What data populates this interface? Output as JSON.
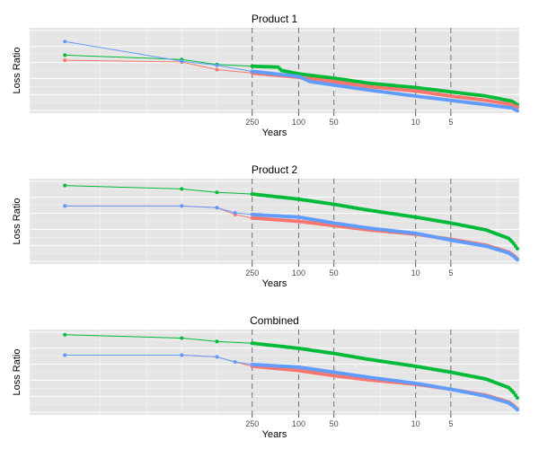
{
  "colors": {
    "panel_bg": "#e5e5e5",
    "grid_major": "#ffffff",
    "grid_minor": "#f2f2f2",
    "vline": "#707070",
    "series": [
      "#f8766d",
      "#00ba38",
      "#619cff"
    ]
  },
  "chart_data": [
    {
      "type": "line",
      "title": "Product 1",
      "xlabel": "Years",
      "ylabel": "Loss Ratio",
      "x_scale": "log10-reversed",
      "xlim": [
        20000,
        1.3
      ],
      "ylim": [
        0,
        1
      ],
      "grid": true,
      "legend": "none",
      "vlines": [
        250,
        100,
        50,
        10,
        5
      ],
      "x_ticks": [
        "250",
        "100",
        "50",
        "10",
        "5"
      ],
      "series": [
        {
          "values": [
            [
              10000,
              0.62
            ],
            [
              1000,
              0.6
            ],
            [
              500,
              0.51
            ],
            [
              250,
              0.47
            ],
            [
              100,
              0.42
            ],
            [
              50,
              0.37
            ],
            [
              25,
              0.31
            ],
            [
              10,
              0.26
            ],
            [
              5,
              0.2
            ],
            [
              2.5,
              0.15
            ],
            [
              1.5,
              0.1
            ],
            [
              1.35,
              0.07
            ]
          ]
        },
        {
          "values": [
            [
              10000,
              0.68
            ],
            [
              1000,
              0.63
            ],
            [
              500,
              0.57
            ],
            [
              250,
              0.55
            ],
            [
              150,
              0.54
            ],
            [
              140,
              0.5
            ],
            [
              100,
              0.46
            ],
            [
              50,
              0.41
            ],
            [
              25,
              0.35
            ],
            [
              10,
              0.3
            ],
            [
              5,
              0.25
            ],
            [
              2.5,
              0.2
            ],
            [
              1.5,
              0.14
            ],
            [
              1.35,
              0.1
            ]
          ]
        },
        {
          "values": [
            [
              10000,
              0.84
            ],
            [
              1000,
              0.61
            ],
            [
              500,
              0.56
            ],
            [
              250,
              0.49
            ],
            [
              100,
              0.43
            ],
            [
              80,
              0.37
            ],
            [
              50,
              0.33
            ],
            [
              25,
              0.27
            ],
            [
              10,
              0.2
            ],
            [
              5,
              0.15
            ],
            [
              2.5,
              0.1
            ],
            [
              1.5,
              0.06
            ],
            [
              1.35,
              0.03
            ]
          ]
        }
      ]
    },
    {
      "type": "line",
      "title": "Product 2",
      "xlabel": "Years",
      "ylabel": "Loss Ratio",
      "x_scale": "log10-reversed",
      "xlim": [
        20000,
        1.3
      ],
      "ylim": [
        0,
        1
      ],
      "grid": true,
      "legend": "none",
      "vlines": [
        250,
        100,
        50,
        10,
        5
      ],
      "x_ticks": [
        "250",
        "100",
        "50",
        "10",
        "5"
      ],
      "series": [
        {
          "values": [
            [
              10000,
              0.68
            ],
            [
              1000,
              0.68
            ],
            [
              500,
              0.66
            ],
            [
              350,
              0.58
            ],
            [
              250,
              0.54
            ],
            [
              100,
              0.5
            ],
            [
              50,
              0.45
            ],
            [
              25,
              0.4
            ],
            [
              10,
              0.35
            ],
            [
              5,
              0.29
            ],
            [
              2.5,
              0.22
            ],
            [
              1.6,
              0.14
            ],
            [
              1.45,
              0.1
            ],
            [
              1.35,
              0.06
            ]
          ]
        },
        {
          "values": [
            [
              10000,
              0.92
            ],
            [
              1000,
              0.88
            ],
            [
              500,
              0.84
            ],
            [
              250,
              0.82
            ],
            [
              100,
              0.76
            ],
            [
              50,
              0.7
            ],
            [
              25,
              0.63
            ],
            [
              10,
              0.55
            ],
            [
              5,
              0.48
            ],
            [
              2.5,
              0.4
            ],
            [
              1.6,
              0.3
            ],
            [
              1.45,
              0.24
            ],
            [
              1.35,
              0.18
            ]
          ]
        },
        {
          "values": [
            [
              10000,
              0.68
            ],
            [
              1000,
              0.68
            ],
            [
              500,
              0.66
            ],
            [
              350,
              0.6
            ],
            [
              250,
              0.58
            ],
            [
              100,
              0.55
            ],
            [
              50,
              0.48
            ],
            [
              25,
              0.42
            ],
            [
              10,
              0.36
            ],
            [
              5,
              0.28
            ],
            [
              2.5,
              0.21
            ],
            [
              1.6,
              0.13
            ],
            [
              1.45,
              0.09
            ],
            [
              1.35,
              0.05
            ]
          ]
        }
      ]
    },
    {
      "type": "line",
      "title": "Combined",
      "xlabel": "Years",
      "ylabel": "Loss Ratio",
      "x_scale": "log10-reversed",
      "xlim": [
        20000,
        1.3
      ],
      "ylim": [
        0,
        1
      ],
      "grid": true,
      "legend": "none",
      "vlines": [
        250,
        100,
        50,
        10,
        5
      ],
      "x_ticks": [
        "250",
        "100",
        "50",
        "10",
        "5"
      ],
      "series": [
        {
          "values": [
            [
              10000,
              0.7
            ],
            [
              1000,
              0.7
            ],
            [
              500,
              0.68
            ],
            [
              350,
              0.62
            ],
            [
              250,
              0.57
            ],
            [
              100,
              0.52
            ],
            [
              50,
              0.46
            ],
            [
              25,
              0.41
            ],
            [
              10,
              0.36
            ],
            [
              5,
              0.3
            ],
            [
              2.5,
              0.23
            ],
            [
              1.6,
              0.15
            ],
            [
              1.45,
              0.11
            ],
            [
              1.35,
              0.07
            ]
          ]
        },
        {
          "values": [
            [
              10000,
              0.94
            ],
            [
              1000,
              0.9
            ],
            [
              500,
              0.86
            ],
            [
              250,
              0.84
            ],
            [
              100,
              0.78
            ],
            [
              50,
              0.72
            ],
            [
              25,
              0.65
            ],
            [
              10,
              0.57
            ],
            [
              5,
              0.5
            ],
            [
              2.5,
              0.42
            ],
            [
              1.6,
              0.32
            ],
            [
              1.45,
              0.26
            ],
            [
              1.35,
              0.2
            ]
          ]
        },
        {
          "values": [
            [
              10000,
              0.7
            ],
            [
              1000,
              0.7
            ],
            [
              500,
              0.68
            ],
            [
              350,
              0.62
            ],
            [
              250,
              0.59
            ],
            [
              100,
              0.56
            ],
            [
              50,
              0.5
            ],
            [
              25,
              0.44
            ],
            [
              10,
              0.37
            ],
            [
              5,
              0.3
            ],
            [
              2.5,
              0.22
            ],
            [
              1.6,
              0.14
            ],
            [
              1.45,
              0.1
            ],
            [
              1.35,
              0.06
            ]
          ]
        }
      ]
    }
  ]
}
